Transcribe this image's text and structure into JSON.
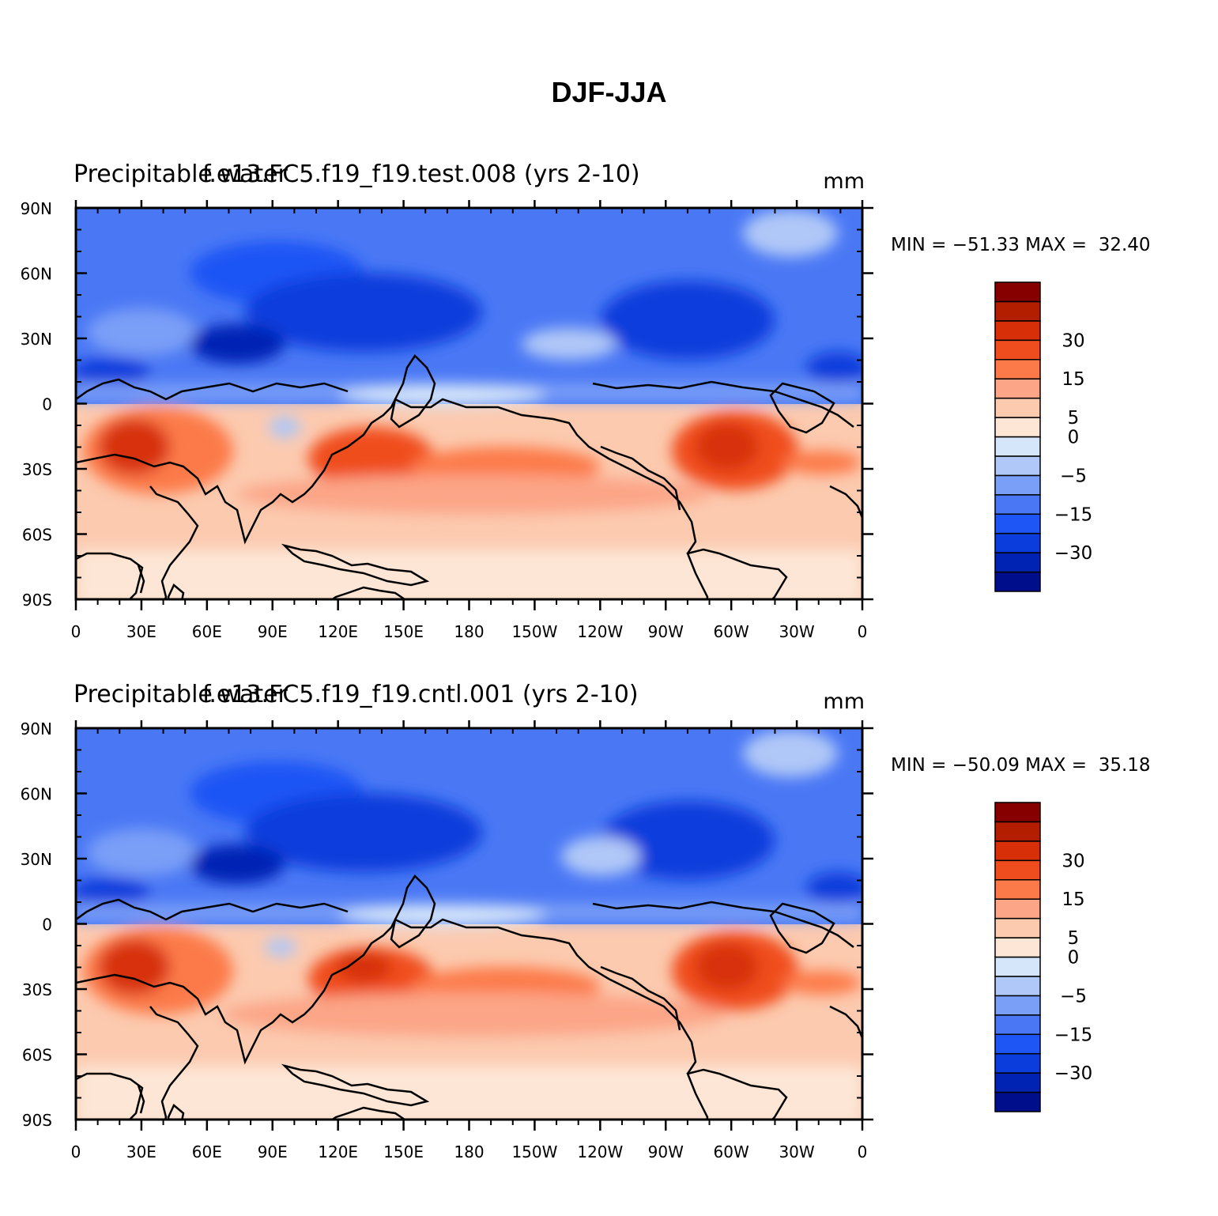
{
  "title": "DJF-JJA",
  "panels": [
    {
      "left_title": "Precipitable water",
      "center_title": "f.e13.FC5.f19_f19.test.008 (yrs 2-10)",
      "units": "mm",
      "stats": "MIN = −51.33 MAX =  32.40"
    },
    {
      "left_title": "Precipitable water",
      "center_title": "f.e13.FC5.f19_f19.cntl.001 (yrs 2-10)",
      "units": "mm",
      "stats": "MIN = −50.09 MAX =  35.18"
    }
  ],
  "lat_ticks": [
    "90N",
    "60N",
    "30N",
    "0",
    "30S",
    "60S",
    "90S"
  ],
  "lon_ticks": [
    "0",
    "30E",
    "60E",
    "90E",
    "120E",
    "150E",
    "180",
    "150W",
    "120W",
    "90W",
    "60W",
    "30W",
    "0"
  ],
  "colorbar": {
    "colors": [
      "#000e8c",
      "#0023b4",
      "#0a3ddc",
      "#1e55f5",
      "#4a78f5",
      "#7a9ff7",
      "#b0c8f7",
      "#d6e6fa",
      "#fde6d6",
      "#fccaaf",
      "#fca587",
      "#fc7a4a",
      "#f04d1e",
      "#d73008",
      "#b41e00",
      "#870000"
    ],
    "labels": [
      {
        "value": "30",
        "boundary": 13
      },
      {
        "value": "15",
        "boundary": 11
      },
      {
        "value": "5",
        "boundary": 9
      },
      {
        "value": "0",
        "boundary": 8
      },
      {
        "value": "−5",
        "boundary": 6
      },
      {
        "value": "−15",
        "boundary": 4
      },
      {
        "value": "−30",
        "boundary": 2
      }
    ]
  },
  "field_colors": {
    "deep_blue": "#0023b4",
    "dark_blue": "#0a3ddc",
    "mid_blue": "#1e55f5",
    "blue": "#4a78f5",
    "light_blue": "#7a9ff7",
    "pale_blue": "#b0c8f7",
    "palest_blue": "#d6e6fa",
    "palest_red": "#fde6d6",
    "pale_red": "#fccaaf",
    "light_red": "#fca587",
    "red": "#fc7a4a",
    "dark_red": "#f04d1e",
    "deep_red": "#d73008"
  }
}
